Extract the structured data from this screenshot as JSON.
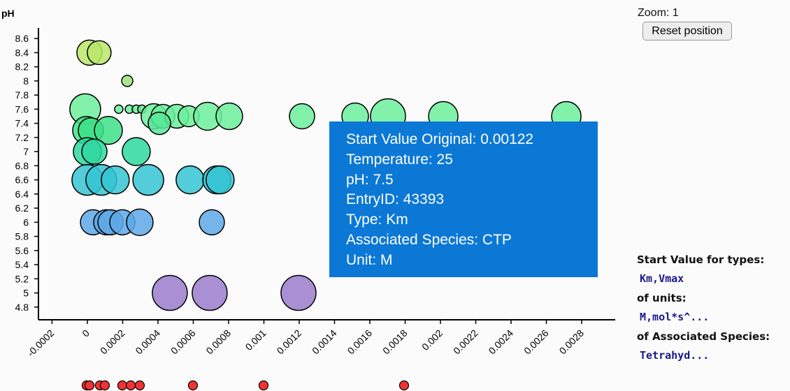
{
  "chart_data": {
    "type": "scatter",
    "y_label": "pH",
    "xlim": [
      -0.000277,
      0.00299
    ],
    "ylim": [
      4.62,
      8.75
    ],
    "xticks": [
      -0.0002,
      0,
      0.0002,
      0.0004,
      0.0006,
      0.0008,
      0.001,
      0.0012,
      0.0014,
      0.0016,
      0.0018,
      0.002,
      0.0022,
      0.0024,
      0.0026,
      0.0028
    ],
    "yticks": [
      4.8,
      5,
      5.2,
      5.4,
      5.6,
      5.8,
      6,
      6.2,
      6.4,
      6.6,
      6.8,
      7,
      7.2,
      7.4,
      7.6,
      7.8,
      8,
      8.2,
      8.4,
      8.6
    ],
    "series": [
      {
        "color": "#b8e868",
        "x": [
          1.2e-05,
          6.7e-05
        ],
        "values": [
          8.4,
          8.4
        ],
        "sizes": [
          18,
          17
        ]
      },
      {
        "color": "#9be27a",
        "x": [
          0.000226
        ],
        "values": [
          8.0
        ],
        "sizes": [
          8
        ]
      },
      {
        "color": "#6cf09c",
        "x": [
          -1.2e-05,
          0.000178,
          0.000238,
          0.000277,
          0.000309
        ],
        "values": [
          7.6,
          7.6,
          7.6,
          7.6,
          7.6
        ],
        "sizes": [
          22,
          6,
          6,
          6,
          6
        ]
      },
      {
        "color": "#6cf09c",
        "x": [
          0.000376,
          0.000428,
          0.000507,
          0.000574,
          0.000681,
          0.000804,
          0.001216,
          0.001517,
          0.001703,
          0.002016,
          0.002713
        ],
        "values": [
          7.5,
          7.5,
          7.5,
          7.5,
          7.5,
          7.5,
          7.5,
          7.5,
          7.5,
          7.5,
          7.5
        ],
        "sizes": [
          18,
          17,
          17,
          15,
          20,
          19,
          18,
          19,
          25,
          21,
          21
        ]
      },
      {
        "color": "#58e89a",
        "x": [
          0.000408
        ],
        "values": [
          7.4
        ],
        "sizes": [
          16
        ]
      },
      {
        "color": "#3ee08a",
        "x": [
          -4e-06,
          2e-05,
          0.000119
        ],
        "values": [
          7.3,
          7.3,
          7.3
        ],
        "sizes": [
          20,
          18,
          20
        ]
      },
      {
        "color": "#2ed8a0",
        "x": [
          0,
          4e-05,
          0.000277
        ],
        "values": [
          7.0,
          7.0,
          7.0
        ],
        "sizes": [
          20,
          18,
          20
        ]
      },
      {
        "color": "#34c4d2",
        "x": [
          0,
          7.9e-05,
          0.000158,
          0.000345,
          0.000582,
          0.000733,
          0.000752
        ],
        "values": [
          6.6,
          6.6,
          6.6,
          6.6,
          6.6,
          6.6,
          6.6
        ],
        "sizes": [
          22,
          22,
          20,
          22,
          20,
          20,
          20
        ]
      },
      {
        "color": "#5ea8e8",
        "x": [
          3.2e-05,
          0.000107,
          0.000131,
          0.000198,
          0.000297,
          0.000705
        ],
        "values": [
          6.0,
          6.0,
          6.0,
          6.0,
          6.0,
          6.0
        ],
        "sizes": [
          18,
          18,
          18,
          18,
          19,
          18
        ]
      },
      {
        "color": "#9a7ccc",
        "x": [
          0.000467,
          0.000693,
          0.001196
        ],
        "values": [
          5.0,
          5.0,
          5.0
        ],
        "sizes": [
          25,
          25,
          25
        ]
      }
    ],
    "rug_color": "#f03434",
    "rug_x": [
      -4e-06,
      1.2e-05,
      7.1e-05,
      9.9e-05,
      0.000198,
      0.000246,
      0.000297,
      0.000598,
      0.000998,
      0.001794
    ],
    "tooltip": [
      "Start Value Original: 0.00122",
      "Temperature: 25",
      "pH: 7.5",
      "EntryID: 43393",
      "Type: Km",
      "Associated Species: CTP",
      "Unit: M"
    ]
  },
  "controls": {
    "zoom": "Zoom: 1",
    "reset": "Reset position"
  },
  "filters": [
    {
      "label": "Start Value for types:",
      "value": "Km,Vmax"
    },
    {
      "label": "of units:",
      "value": "M,mol*s^..."
    },
    {
      "label": "of Associated Species:",
      "value": "Tetrahyd..."
    }
  ]
}
